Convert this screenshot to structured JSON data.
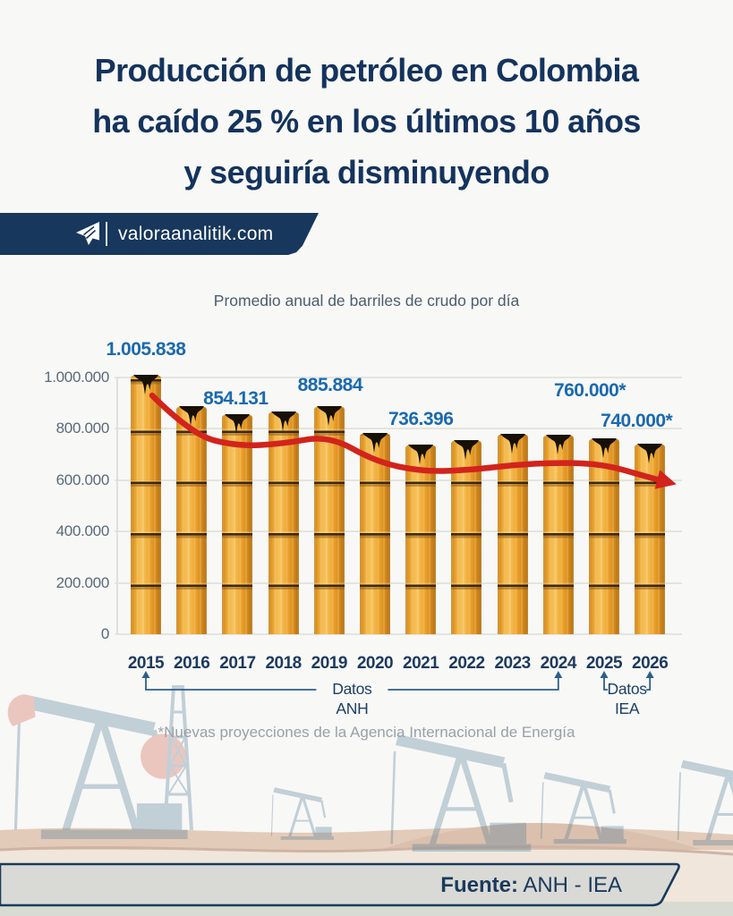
{
  "title": {
    "lines": [
      "Producción de petróleo en Colombia",
      "ha caído 25 % en los últimos 10 años",
      "y seguiría disminuyendo"
    ],
    "color": "#14335D"
  },
  "brand": {
    "site_label": "valoraanalitik.com",
    "banner_color": "#17375C",
    "icon": "paper-plane-icon"
  },
  "chart_data": {
    "type": "bar",
    "title": "Promedio anual de barriles de crudo por día",
    "categories": [
      "2015",
      "2016",
      "2017",
      "2018",
      "2019",
      "2020",
      "2021",
      "2022",
      "2023",
      "2024",
      "2025",
      "2026"
    ],
    "values": [
      1005838,
      886000,
      854131,
      865000,
      885884,
      781000,
      736396,
      754000,
      777000,
      772000,
      760000,
      740000
    ],
    "bar_value_labels": [
      "1.005.838",
      "",
      "854.131",
      "",
      "885.884",
      "",
      "736.396",
      "",
      "",
      "",
      "760.000*",
      "740.000*"
    ],
    "trend_line_values": [
      930000,
      777000,
      732000,
      742000,
      774000,
      673000,
      634000,
      638000,
      659000,
      669000,
      662000,
      610000
    ],
    "xlabel": "",
    "ylabel": "",
    "ylim": [
      0,
      1000000
    ],
    "yticks": [
      1000000,
      800000,
      600000,
      400000,
      200000,
      0
    ],
    "ytick_labels": [
      "1.000.000",
      "800.000",
      "600.000",
      "400.000",
      "200.000",
      "0"
    ],
    "grid": true,
    "legend_position": "none",
    "bar_color": "#EFA32C",
    "trend_color": "#D2231D",
    "value_label_color": "#1A6AAE",
    "source_groups": [
      {
        "top_label": "Datos",
        "bottom_label": "ANH",
        "from": "2015",
        "to": "2024"
      },
      {
        "top_label": "Datos",
        "bottom_label": "IEA",
        "from": "2025",
        "to": "2026"
      }
    ]
  },
  "footnote": {
    "text": "*Nuevas proyecciones de la Agencia Internacional de Energía"
  },
  "footer": {
    "label": "Fuente:",
    "value": "ANH - IEA"
  }
}
